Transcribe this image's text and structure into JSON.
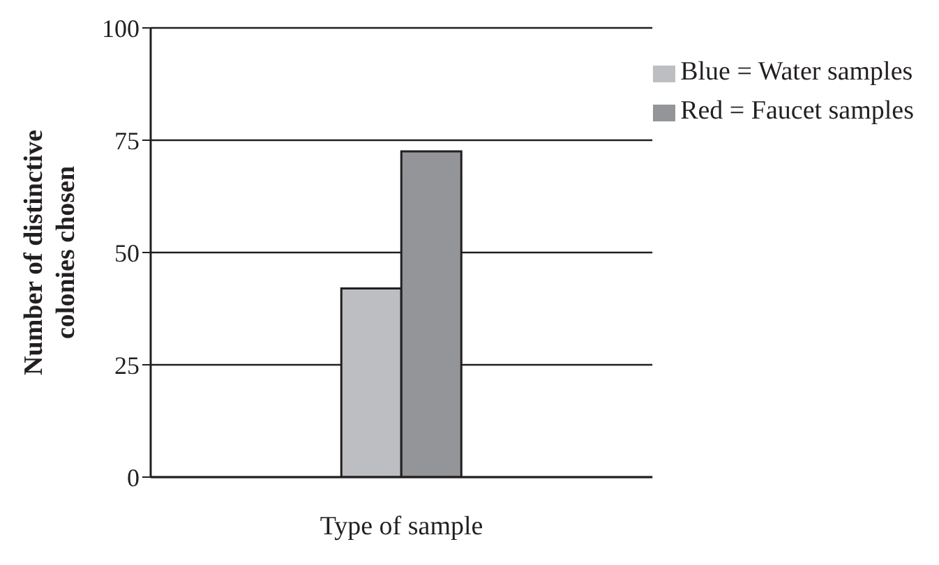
{
  "chart_data": {
    "type": "bar",
    "xlabel": "Type of sample",
    "ylabel": "Number of distinctive colonies chosen",
    "categories": [
      null
    ],
    "series": [
      {
        "name": "Blue = Water samples",
        "color": "#bdbec2",
        "values": [
          42
        ]
      },
      {
        "name": "Red = Faucet samples",
        "color": "#939598",
        "values": [
          72.5
        ]
      }
    ],
    "ylim": [
      0,
      100
    ],
    "yticks": [
      0,
      25,
      50,
      75,
      100
    ],
    "grid": "y",
    "legend": "top right"
  }
}
